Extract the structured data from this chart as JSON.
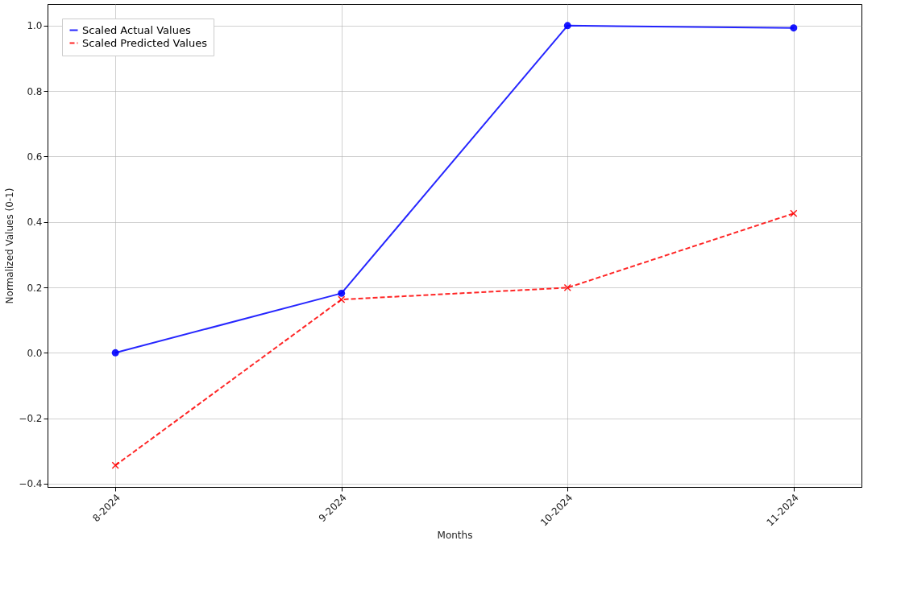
{
  "chart_data": {
    "type": "line",
    "xlabel": "Months",
    "ylabel": "Normalized Values (0-1)",
    "categories": [
      "8-2024",
      "9-2024",
      "10-2024",
      "11-2024"
    ],
    "series": [
      {
        "name": "Scaled Actual Values",
        "color": "#0000ff",
        "values": [
          0.0,
          0.182,
          1.0,
          0.993
        ],
        "marker": "circle",
        "line_style": "solid"
      },
      {
        "name": "Scaled Predicted Values",
        "color": "#ff0000",
        "values": [
          -0.344,
          0.163,
          0.199,
          0.426
        ],
        "marker": "cross",
        "line_style": "dashed"
      }
    ],
    "ylim": [
      -0.41,
      1.066
    ],
    "yticks": [
      {
        "value": -0.4,
        "label": "−0.4"
      },
      {
        "value": -0.2,
        "label": "−0.2"
      },
      {
        "value": 0,
        "label": "0.0"
      },
      {
        "value": 0.2,
        "label": "0.2"
      },
      {
        "value": 0.4,
        "label": "0.4"
      },
      {
        "value": 0.6,
        "label": "0.6"
      },
      {
        "value": 0.8,
        "label": "0.8"
      },
      {
        "value": 1,
        "label": "1.0"
      }
    ],
    "grid": true,
    "legend": "top left"
  }
}
